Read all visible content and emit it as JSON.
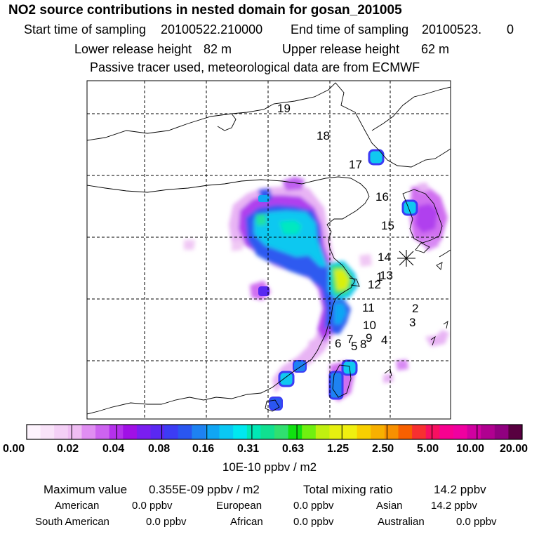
{
  "title": "NO2 source contributions in nested domain for gosan_201005",
  "header": {
    "start_label": "Start time of sampling",
    "start_value": "20100522.210000",
    "end_label": "End time of sampling",
    "end_value": "20100523.",
    "end_value2": "0",
    "lower_label": "Lower release height",
    "lower_value": "82 m",
    "upper_label": "Upper release height",
    "upper_value": "62 m",
    "note": "Passive tracer used, meteorological data are from ECMWF"
  },
  "map": {
    "receptor_marker": "receptor-star-icon",
    "region_labels": [
      {
        "id": "1",
        "text": "1"
      },
      {
        "id": "2",
        "text": "2"
      },
      {
        "id": "3",
        "text": "3"
      },
      {
        "id": "4",
        "text": "4"
      },
      {
        "id": "5",
        "text": "5"
      },
      {
        "id": "6",
        "text": "6"
      },
      {
        "id": "7",
        "text": "7"
      },
      {
        "id": "8",
        "text": "8"
      },
      {
        "id": "9",
        "text": "9"
      },
      {
        "id": "10",
        "text": "10"
      },
      {
        "id": "11",
        "text": "11"
      },
      {
        "id": "12",
        "text": "12"
      },
      {
        "id": "13",
        "text": "13"
      },
      {
        "id": "14",
        "text": "14"
      },
      {
        "id": "15",
        "text": "15"
      },
      {
        "id": "16",
        "text": "16"
      },
      {
        "id": "17",
        "text": "17"
      },
      {
        "id": "18",
        "text": "18"
      },
      {
        "id": "19",
        "text": "19"
      }
    ]
  },
  "colorbar": {
    "colors": [
      "#fdf3fd",
      "#f9e3f9",
      "#f4d0f6",
      "#efbdf3",
      "#e08ef2",
      "#cd63f0",
      "#b531ec",
      "#a010e6",
      "#7a1ef0",
      "#5a28f2",
      "#3c3cf4",
      "#2a56f0",
      "#1e82f2",
      "#10a6f4",
      "#0ac8f4",
      "#00e8f0",
      "#00e8b6",
      "#10e090",
      "#30e070",
      "#10e010",
      "#70f010",
      "#c0f010",
      "#e6f010",
      "#f0f010",
      "#f8d000",
      "#f8b000",
      "#f89000",
      "#f86000",
      "#f83030",
      "#f81060",
      "#f80090",
      "#f000a0",
      "#d000a0",
      "#b00090",
      "#900080",
      "#580040"
    ],
    "labels": [
      "0.00",
      "0.02",
      "0.04",
      "0.08",
      "0.16",
      "0.31",
      "0.63",
      "1.25",
      "2.50",
      "5.00",
      "10.00",
      "20.00"
    ],
    "units": "10E-10 ppbv / m2"
  },
  "footer": {
    "max_label": "Maximum value",
    "max_value": "0.355E-09 ppbv / m2",
    "total_label": "Total mixing ratio",
    "total_value": "14.2 ppbv",
    "american_label": "American",
    "american_value": "0.0 ppbv",
    "european_label": "European",
    "european_value": "0.0 ppbv",
    "asian_label": "Asian",
    "asian_value": "14.2 ppbv",
    "south_american_label": "South American",
    "south_american_value": "0.0 ppbv",
    "african_label": "African",
    "african_value": "0.0 ppbv",
    "australian_label": "Australian",
    "australian_value": "0.0 ppbv"
  }
}
